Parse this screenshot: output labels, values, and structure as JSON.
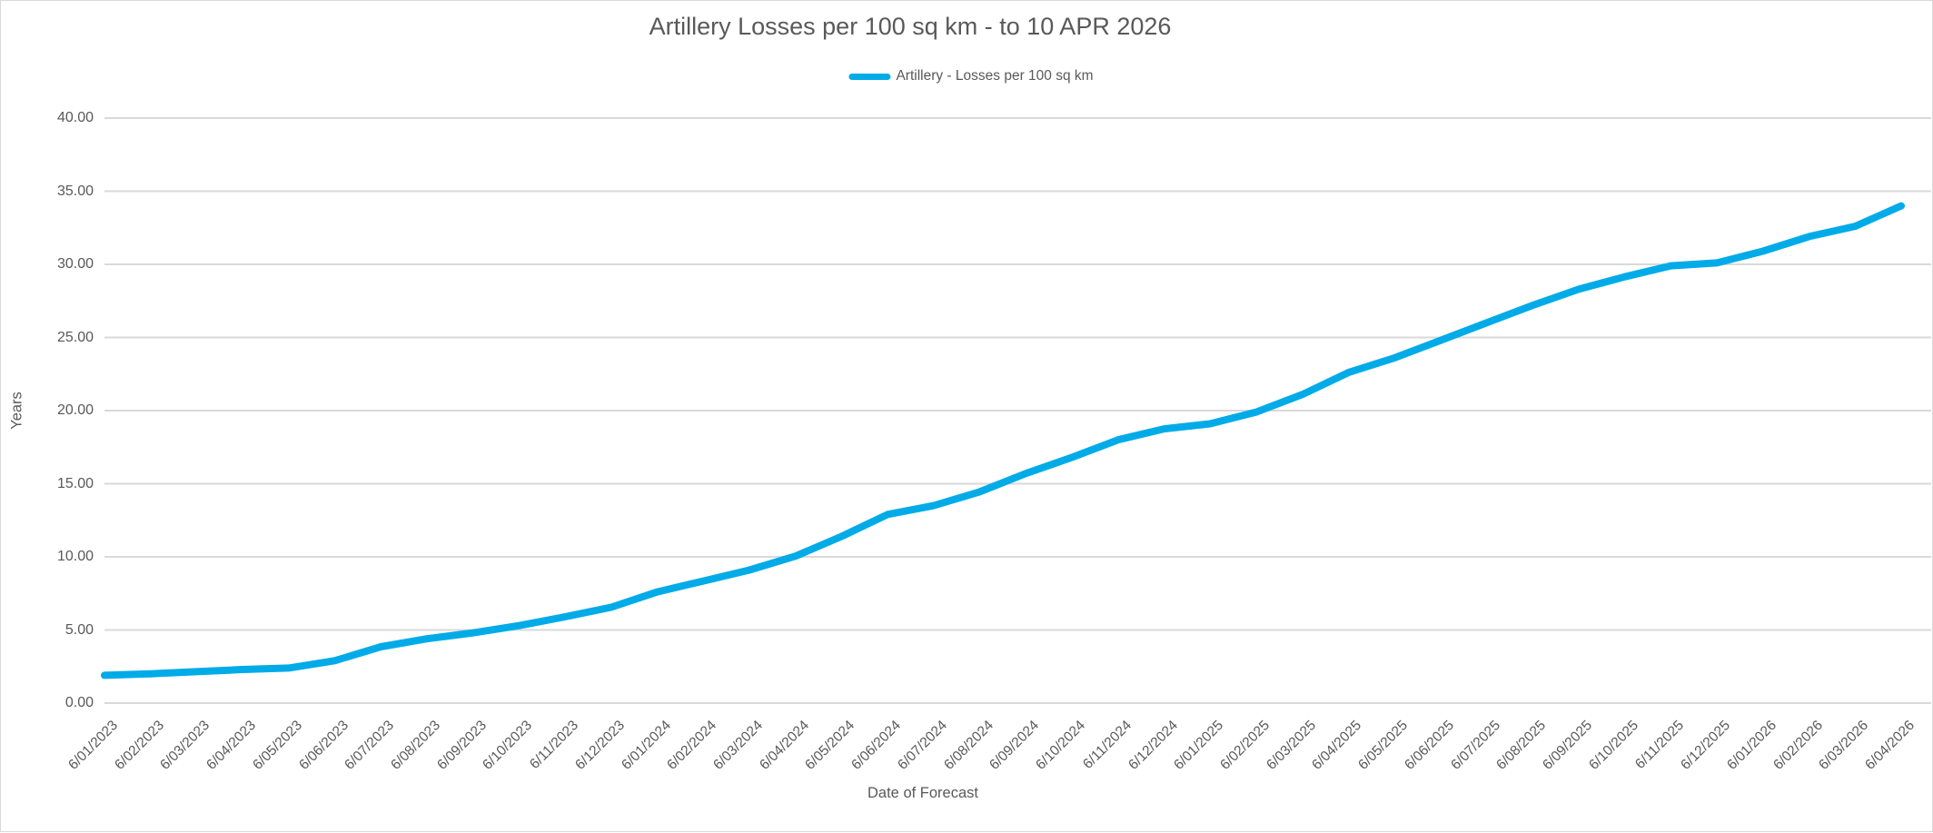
{
  "chart_data": {
    "type": "line",
    "title": "Artillery Losses per 100 sq km - to 10 APR 2026",
    "xlabel": "Date of Forecast",
    "ylabel": "Years",
    "ylim": [
      0,
      40
    ],
    "ytick_labels": [
      "0.00",
      "5.00",
      "10.00",
      "15.00",
      "20.00",
      "25.00",
      "30.00",
      "35.00",
      "40.00"
    ],
    "grid": true,
    "legend_position": "top",
    "categories": [
      "6/01/2023",
      "6/02/2023",
      "6/03/2023",
      "6/04/2023",
      "6/05/2023",
      "6/06/2023",
      "6/07/2023",
      "6/08/2023",
      "6/09/2023",
      "6/10/2023",
      "6/11/2023",
      "6/12/2023",
      "6/01/2024",
      "6/02/2024",
      "6/03/2024",
      "6/04/2024",
      "6/05/2024",
      "6/06/2024",
      "6/07/2024",
      "6/08/2024",
      "6/09/2024",
      "6/10/2024",
      "6/11/2024",
      "6/12/2024",
      "6/01/2025",
      "6/02/2025",
      "6/03/2025",
      "6/04/2025",
      "6/05/2025",
      "6/06/2025",
      "6/07/2025",
      "6/08/2025",
      "6/09/2025",
      "6/10/2025",
      "6/11/2025",
      "6/12/2025",
      "6/01/2026",
      "6/02/2026",
      "6/03/2026",
      "6/04/2026"
    ],
    "series": [
      {
        "name": "Artillery - Losses per 100 sq km",
        "color": "#00ABE8",
        "values": [
          1.9,
          2.0,
          2.15,
          2.3,
          2.4,
          2.9,
          3.85,
          4.4,
          4.8,
          5.3,
          5.9,
          6.55,
          7.6,
          8.35,
          9.1,
          10.05,
          11.4,
          12.9,
          13.5,
          14.45,
          15.7,
          16.8,
          18.0,
          18.75,
          19.1,
          19.9,
          21.1,
          22.6,
          23.6,
          24.8,
          26.0,
          27.2,
          28.3,
          29.15,
          29.9,
          30.1,
          30.9,
          31.9,
          32.6,
          34.0
        ]
      }
    ]
  },
  "colors": {
    "accent": "#00ABE8",
    "text": "#595959",
    "gridline": "#d9d9d9",
    "border": "#d9d9d9"
  }
}
